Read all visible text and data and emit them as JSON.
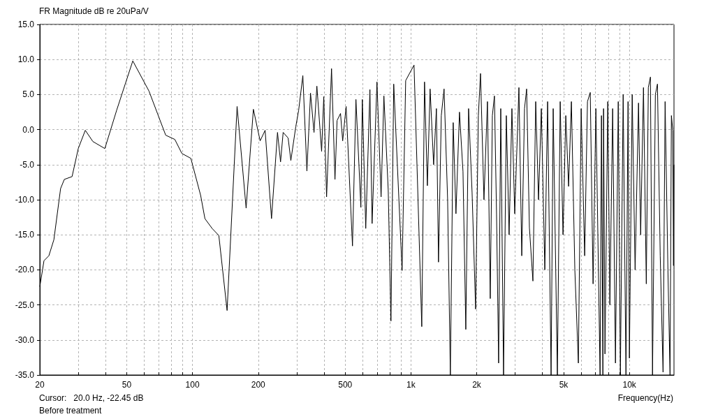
{
  "chart_data": {
    "type": "line",
    "title": "FR Magnitude dB re 20uPa/V",
    "xlabel": "Frequency(Hz)",
    "annotations": [
      "Cursor:   20.0 Hz, -22.45 dB",
      "Before treatment"
    ],
    "log": "x",
    "grid": true,
    "xlim": [
      20,
      16000
    ],
    "ylim": [
      -35,
      15
    ],
    "xticks": [
      20,
      {
        "value": 30,
        "label": null
      },
      {
        "value": 40,
        "label": null
      },
      50,
      {
        "value": 60,
        "label": null
      },
      {
        "value": 70,
        "label": null
      },
      {
        "value": 80,
        "label": null
      },
      {
        "value": 90,
        "label": null
      },
      100,
      200,
      {
        "value": 300,
        "label": null
      },
      {
        "value": 400,
        "label": null
      },
      500,
      {
        "value": 600,
        "label": null
      },
      {
        "value": 700,
        "label": null
      },
      {
        "value": 800,
        "label": null
      },
      {
        "value": 900,
        "label": null
      },
      {
        "value": 1000,
        "label": "1k"
      },
      {
        "value": 2000,
        "label": "2k"
      },
      {
        "value": 3000,
        "label": null
      },
      {
        "value": 4000,
        "label": null
      },
      {
        "value": 5000,
        "label": "5k"
      },
      {
        "value": 6000,
        "label": null
      },
      {
        "value": 7000,
        "label": null
      },
      {
        "value": 8000,
        "label": null
      },
      {
        "value": 9000,
        "label": null
      },
      {
        "value": 10000,
        "label": "10k"
      }
    ],
    "yticks": [
      {
        "value": -35,
        "label": "-35.0"
      },
      {
        "value": -30,
        "label": "-30.0"
      },
      {
        "value": -25,
        "label": "-25.0"
      },
      {
        "value": -20,
        "label": "-20.0"
      },
      {
        "value": -15,
        "label": "-15.0"
      },
      {
        "value": -10,
        "label": "-10.0"
      },
      {
        "value": -5,
        "label": "-5.0"
      },
      {
        "value": 0,
        "label": "0.0"
      },
      {
        "value": 5,
        "label": "5.0"
      },
      {
        "value": 10,
        "label": "10.0"
      },
      {
        "value": 15,
        "label": "15.0"
      }
    ],
    "x": [
      20,
      20.9,
      22.0,
      23.2,
      24.9,
      25.9,
      28.1,
      30.0,
      32.3,
      35.0,
      39.7,
      45.0,
      53.3,
      63.2,
      75.4,
      83.0,
      89.4,
      98.3,
      109,
      114,
      123,
      132,
      144,
      160,
      176,
      190,
      204,
      215,
      230,
      245,
      253,
      260,
      274,
      282,
      297,
      306,
      320,
      334,
      347,
      360,
      371,
      390,
      399,
      411,
      433,
      449,
      459,
      476,
      487,
      505,
      540,
      560,
      590,
      599,
      621,
      649,
      664,
      699,
      730,
      752,
      787,
      810,
      834,
      911,
      946,
      1033,
      1121,
      1154,
      1189,
      1224,
      1270,
      1308,
      1337,
      1377,
      1418,
      1472,
      1515,
      1561,
      1607,
      1668,
      1731,
      1783,
      1836,
      1905,
      1977,
      2035,
      2082,
      2159,
      2240,
      2307,
      2359,
      2411,
      2465,
      2520,
      2577,
      2654,
      2733,
      2814,
      2899,
      2986,
      3121,
      3216,
      3311,
      3385,
      3486,
      3617,
      3725,
      3837,
      3953,
      4100,
      4223,
      4381,
      4479,
      4681,
      4822,
      4967,
      5115,
      5268,
      5426,
      5627,
      5840,
      6015,
      6241,
      6428,
      6620,
      6820,
      7024,
      7342,
      7451,
      7562,
      7617,
      7730,
      7962,
      8140,
      8383,
      8634,
      8892,
      9093,
      9365,
      9645,
      9860,
      10000,
      10300,
      10620,
      11010,
      11260,
      11600,
      11950,
      12210,
      12480,
      12760,
      13150,
      13440,
      13840,
      14260,
      14570,
      15010,
      15350,
      15570,
      15800,
      15920,
      16000
    ],
    "series": [
      {
        "color": "#000000",
        "values": [
          -22.4,
          -18.7,
          -18.0,
          -15.7,
          -8.4,
          -7.1,
          -6.7,
          -2.7,
          -0.1,
          -1.7,
          -2.7,
          2.8,
          9.8,
          5.5,
          -0.8,
          -1.4,
          -3.4,
          -4.1,
          -9.4,
          -12.7,
          -14.1,
          -15.1,
          -25.8,
          3.3,
          -11.2,
          2.9,
          -1.6,
          -0.1,
          -12.7,
          -0.4,
          -4.6,
          -0.4,
          -1.2,
          -4.4,
          0.4,
          2.7,
          7.7,
          -5.9,
          5.2,
          -0.4,
          6.2,
          -3.1,
          4.7,
          -9.6,
          8.7,
          -7.1,
          1.3,
          2.3,
          -1.6,
          3.3,
          -16.6,
          4.3,
          -11.1,
          4.3,
          -14.1,
          5.7,
          -13.4,
          6.8,
          -9.6,
          4.8,
          -8.6,
          -27.3,
          6.5,
          -20.1,
          7.0,
          9.2,
          -28.1,
          6.8,
          -8,
          5.8,
          -5,
          3,
          -18.9,
          2,
          5.8,
          -10,
          -35,
          1,
          -12,
          2.5,
          -6,
          -28.5,
          3,
          -9,
          -25.6,
          2,
          8.0,
          -10,
          4,
          -24.1,
          2,
          4.8,
          -12,
          -33.3,
          3,
          -35,
          2,
          -15,
          3,
          -12,
          6.0,
          -18,
          3,
          5.8,
          -14,
          -21.6,
          4,
          -10,
          3,
          -20,
          4,
          -35,
          3,
          -35,
          4,
          -15,
          2,
          -8.1,
          4,
          -20,
          -33.3,
          3,
          -18,
          4,
          5.3,
          -22,
          3,
          -35,
          2,
          -35,
          3,
          -32,
          4,
          -25,
          3,
          -33.3,
          4,
          -35,
          5,
          -35,
          4,
          -32.6,
          5,
          -20,
          3.8,
          -15,
          6,
          -22,
          6,
          7.5,
          -35,
          5,
          6.5,
          -18,
          -34.6,
          4,
          -20,
          -35,
          2,
          -0.1,
          -19.4,
          -5
        ]
      }
    ]
  }
}
